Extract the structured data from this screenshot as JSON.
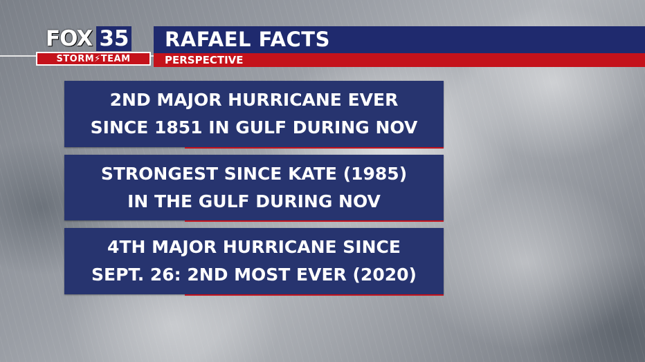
{
  "logo": {
    "brand": "FOX",
    "channel": "35",
    "team": "STORM⚡TEAM"
  },
  "header": {
    "title": "RAFAEL FACTS",
    "subtitle": "PERSPECTIVE"
  },
  "facts": [
    {
      "line1": "2ND MAJOR HURRICANE EVER",
      "line2": "SINCE 1851 IN GULF DURING NOV"
    },
    {
      "line1": "STRONGEST SINCE KATE (1985)",
      "line2": "IN THE GULF DURING NOV"
    },
    {
      "line1": "4TH MAJOR HURRICANE SINCE",
      "line2": "SEPT. 26: 2ND MOST EVER (2020)"
    }
  ],
  "colors": {
    "navy": "#1f2a6e",
    "fact_box": "#27346f",
    "red": "#c4121b",
    "text": "#ffffff"
  }
}
